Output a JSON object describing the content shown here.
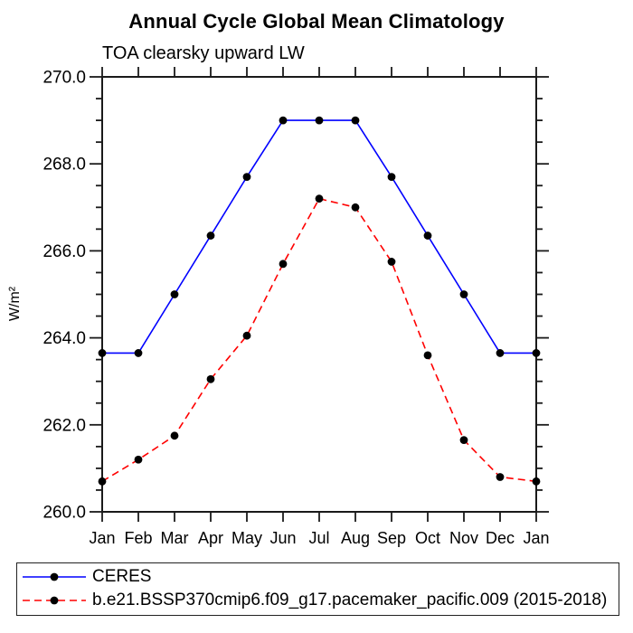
{
  "header": {
    "title": "Annual Cycle Global Mean Climatology",
    "subtitle": "TOA clearsky upward LW"
  },
  "chart_data": {
    "type": "line",
    "title": "Annual Cycle Global Mean Climatology",
    "subtitle": "TOA clearsky upward LW",
    "xlabel": "",
    "ylabel": "W/m²",
    "categories": [
      "Jan",
      "Feb",
      "Mar",
      "Apr",
      "May",
      "Jun",
      "Jul",
      "Aug",
      "Sep",
      "Oct",
      "Nov",
      "Dec",
      "Jan"
    ],
    "ylim": [
      260.0,
      270.0
    ],
    "ytick_major_step": 2.0,
    "ytick_minor_step": 0.5,
    "ytick_label_format": "one-decimal",
    "grid": false,
    "tick_direction": "outward",
    "legend_position": "bottom-box",
    "series": [
      {
        "name": "CERES",
        "color": "#0000ff",
        "line_style": "solid",
        "marker": "filled-circle",
        "marker_color": "#000000",
        "values": [
          263.65,
          263.65,
          265.0,
          266.35,
          267.7,
          269.0,
          269.0,
          269.0,
          267.7,
          266.35,
          265.0,
          263.65,
          263.65
        ]
      },
      {
        "name": "b.e21.BSSP370cmip6.f09_g17.pacemaker_pacific.009 (2015-2018)",
        "color": "#ff0000",
        "line_style": "dashed",
        "marker": "filled-circle",
        "marker_color": "#000000",
        "values": [
          260.7,
          261.2,
          261.75,
          263.05,
          264.05,
          265.7,
          267.2,
          267.0,
          265.75,
          263.6,
          261.65,
          260.8,
          260.7
        ]
      }
    ]
  },
  "colors": {
    "background": "#ffffff",
    "axis": "#1a1a1a",
    "text": "#000000",
    "ceres_line": "#0000ff",
    "model_line": "#ff0000",
    "marker": "#000000"
  }
}
